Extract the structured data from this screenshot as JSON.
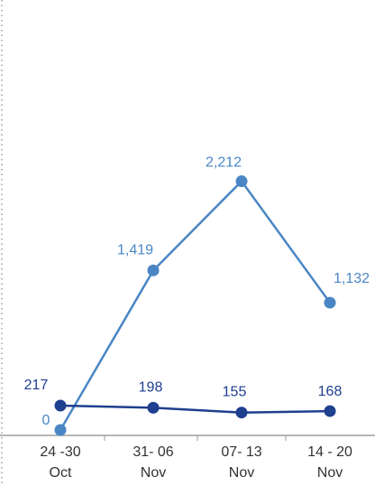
{
  "colors": {
    "series_light": "#4a86c5",
    "series_dark": "#1f3f8f",
    "axis": "#9e9e9e",
    "tick_text": "#333333"
  },
  "chart_data": {
    "type": "line",
    "categories": [
      [
        "24 -30",
        "Oct"
      ],
      [
        "31- 06",
        "Nov"
      ],
      [
        "07- 13",
        "Nov"
      ],
      [
        "14 - 20",
        "Nov"
      ]
    ],
    "series": [
      {
        "values": [
          0,
          1419,
          2212,
          1132
        ],
        "labels": [
          "0",
          "1,419",
          "2,212",
          "1,132"
        ],
        "color": "#4a86c5"
      },
      {
        "values": [
          217,
          198,
          155,
          168
        ],
        "labels": [
          "217",
          "198",
          "155",
          "168"
        ],
        "color": "#1f3f8f"
      }
    ],
    "xlabel": "",
    "ylabel": "",
    "grid": false,
    "legend": "none"
  }
}
